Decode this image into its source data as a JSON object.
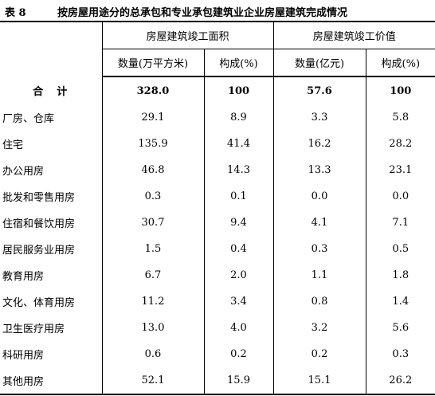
{
  "caption": {
    "number": "表 8",
    "title": "按房屋用途分的总承包和专业承包建筑业企业房屋建筑完成情况"
  },
  "header": {
    "area_group": "房屋建筑竣工面积",
    "value_group": "房屋建筑竣工价值",
    "area_qty": "数量(万平方米)",
    "area_share": "构成(%)",
    "value_qty": "数量(亿元)",
    "value_share": "构成(%)"
  },
  "rows": [
    {
      "label": "合　计",
      "area": "328.0",
      "area_pct": "100",
      "value": "57.6",
      "value_pct": "100"
    },
    {
      "label": "厂房、仓库",
      "area": "29.1",
      "area_pct": "8.9",
      "value": "3.3",
      "value_pct": "5.8"
    },
    {
      "label": "住宅",
      "area": "135.9",
      "area_pct": "41.4",
      "value": "16.2",
      "value_pct": "28.2"
    },
    {
      "label": "办公用房",
      "area": "46.8",
      "area_pct": "14.3",
      "value": "13.3",
      "value_pct": "23.1"
    },
    {
      "label": "批发和零售用房",
      "area": "0.3",
      "area_pct": "0.1",
      "value": "0.0",
      "value_pct": "0.0"
    },
    {
      "label": "住宿和餐饮用房",
      "area": "30.7",
      "area_pct": "9.4",
      "value": "4.1",
      "value_pct": "7.1"
    },
    {
      "label": "居民服务业用房",
      "area": "1.5",
      "area_pct": "0.4",
      "value": "0.3",
      "value_pct": "0.5"
    },
    {
      "label": "教育用房",
      "area": "6.7",
      "area_pct": "2.0",
      "value": "1.1",
      "value_pct": "1.8"
    },
    {
      "label": "文化、体育用房",
      "area": "11.2",
      "area_pct": "3.4",
      "value": "0.8",
      "value_pct": "1.4"
    },
    {
      "label": "卫生医疗用房",
      "area": "13.0",
      "area_pct": "4.0",
      "value": "3.2",
      "value_pct": "5.6"
    },
    {
      "label": "科研用房",
      "area": "0.6",
      "area_pct": "0.2",
      "value": "0.2",
      "value_pct": "0.3"
    },
    {
      "label": "其他用房",
      "area": "52.1",
      "area_pct": "15.9",
      "value": "15.1",
      "value_pct": "26.2"
    }
  ]
}
